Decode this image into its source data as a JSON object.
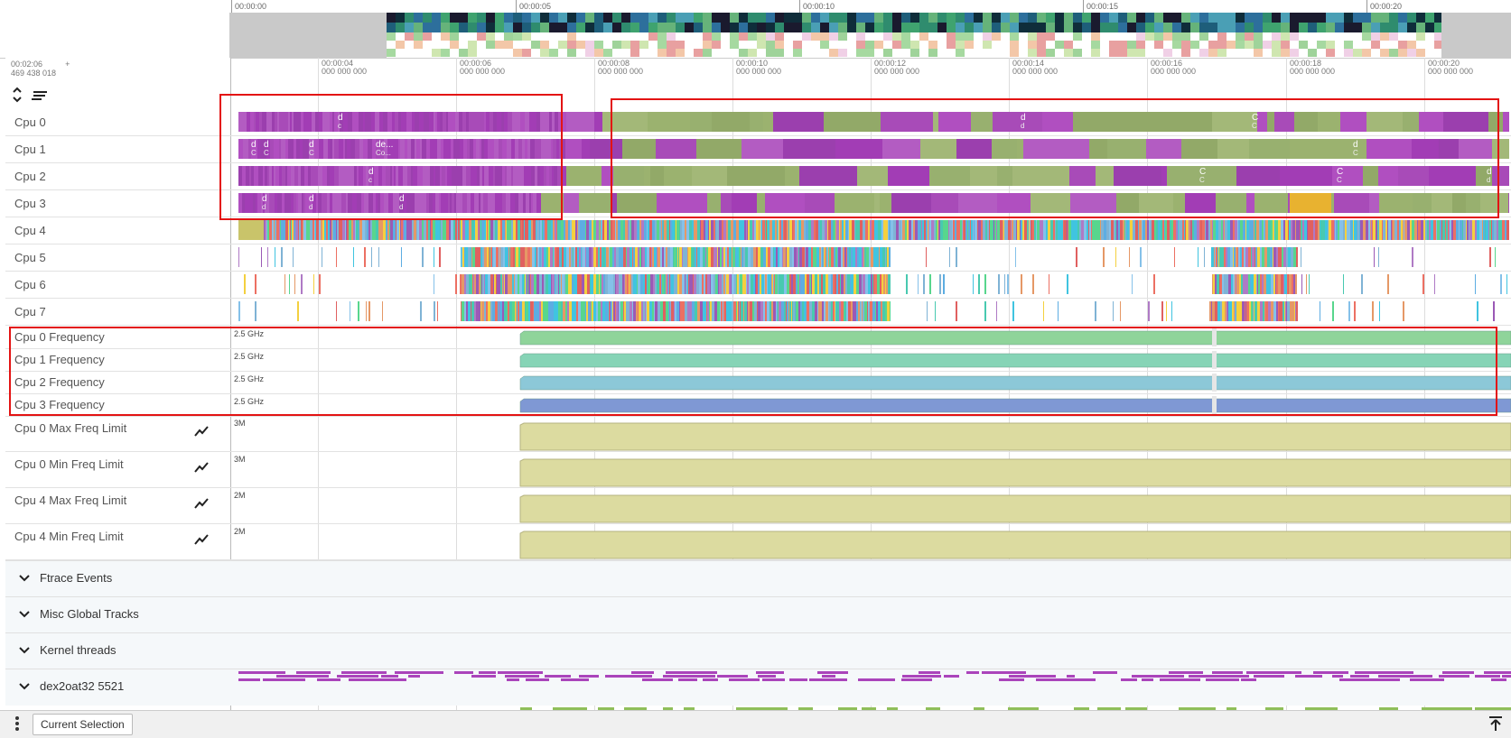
{
  "overview": {
    "time_labels": [
      "00:00:00",
      "00:00:05",
      "00:00:10",
      "00:00:15",
      "00:00:20"
    ]
  },
  "timeline": {
    "offset_time": "00:02:06",
    "offset_ns": "469 438 018",
    "plus": "+",
    "tick_labels": [
      {
        "time": "00:00:04",
        "ns": "000 000 000"
      },
      {
        "time": "00:00:06",
        "ns": "000 000 000"
      },
      {
        "time": "00:00:08",
        "ns": "000 000 000"
      },
      {
        "time": "00:00:10",
        "ns": "000 000 000"
      },
      {
        "time": "00:00:12",
        "ns": "000 000 000"
      },
      {
        "time": "00:00:14",
        "ns": "000 000 000"
      },
      {
        "time": "00:00:16",
        "ns": "000 000 000"
      },
      {
        "time": "00:00:18",
        "ns": "000 000 000"
      },
      {
        "time": "00:00:20",
        "ns": "000 000 000"
      }
    ]
  },
  "cpu_tracks": [
    "Cpu 0",
    "Cpu 1",
    "Cpu 2",
    "Cpu 3",
    "Cpu 4",
    "Cpu 5",
    "Cpu 6",
    "Cpu 7"
  ],
  "slice_labels": {
    "cpu0": [
      {
        "t": "d",
        "s": "c"
      },
      {
        "t": "d",
        "s": "d"
      },
      {
        "t": "C",
        "s": "C"
      }
    ],
    "cpu1": [
      {
        "t": "d",
        "s": "C"
      },
      {
        "t": "d",
        "s": "C"
      },
      {
        "t": "d",
        "s": "C"
      },
      {
        "t": "de...",
        "s": "Co..."
      },
      {
        "t": "d",
        "s": "C"
      }
    ],
    "cpu2": [
      {
        "t": "d",
        "s": "c"
      },
      {
        "t": "C",
        "s": "C"
      },
      {
        "t": "C",
        "s": "C"
      },
      {
        "t": "d",
        "s": "d"
      }
    ],
    "cpu3": [
      {
        "t": "d",
        "s": "d"
      },
      {
        "t": "d",
        "s": "d"
      },
      {
        "t": "d",
        "s": "d"
      }
    ]
  },
  "freq_tracks": [
    {
      "name": "Cpu 0 Frequency",
      "scale": "2.5 GHz",
      "color": "#8fd49a"
    },
    {
      "name": "Cpu 1 Frequency",
      "scale": "2.5 GHz",
      "color": "#86d4b6"
    },
    {
      "name": "Cpu 2 Frequency",
      "scale": "2.5 GHz",
      "color": "#8cc8d8"
    },
    {
      "name": "Cpu 3 Frequency",
      "scale": "2.5 GHz",
      "color": "#7f98d4"
    }
  ],
  "limit_tracks": [
    {
      "name": "Cpu 0 Max Freq Limit",
      "scale": "3M"
    },
    {
      "name": "Cpu 0 Min Freq Limit",
      "scale": "3M"
    },
    {
      "name": "Cpu 4 Max Freq Limit",
      "scale": "2M"
    },
    {
      "name": "Cpu 4 Min Freq Limit",
      "scale": "2M"
    }
  ],
  "groups": [
    "Ftrace Events",
    "Misc Global Tracks",
    "Kernel threads",
    "dex2oat32 5521"
  ],
  "bottom_bar": {
    "tab": "Current Selection"
  },
  "colors": {
    "purple": "#aa44bb",
    "green": "#98b06f",
    "orange": "#e8b230",
    "limit_fill": "#dcdba0",
    "highlight": "#e31313"
  },
  "icons": [
    "expand-collapse-icon",
    "sort-icon",
    "line-chart-icon",
    "chevron-down-icon",
    "more-vert-icon",
    "pin-top-icon"
  ]
}
